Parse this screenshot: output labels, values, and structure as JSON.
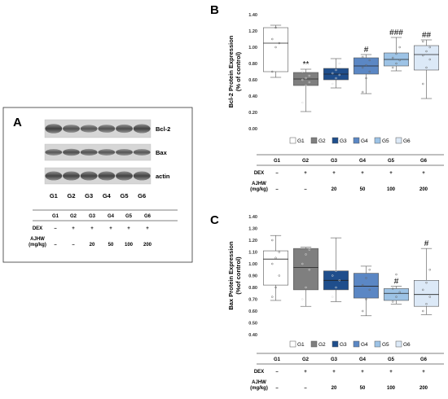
{
  "panels": {
    "A": "A",
    "B": "B",
    "C": "C"
  },
  "blot": {
    "proteins": [
      "Bcl-2",
      "Bax",
      "actin"
    ],
    "lanes": [
      "G1",
      "G2",
      "G3",
      "G4",
      "G5",
      "G6"
    ]
  },
  "table": {
    "groups": [
      "G1",
      "G2",
      "G3",
      "G4",
      "G5",
      "G6"
    ],
    "dex_label": "DEX",
    "dex": [
      "–",
      "+",
      "+",
      "+",
      "+",
      "+"
    ],
    "ajhw_label_line1": "AJHW",
    "ajhw_label_line2": "(mg/kg)",
    "ajhw": [
      "–",
      "–",
      "20",
      "50",
      "100",
      "200"
    ]
  },
  "colors": {
    "G1": "#ffffff",
    "G2": "#7f7f7f",
    "G3": "#1f4e8c",
    "G4": "#5b87c4",
    "G5": "#9dc3e6",
    "G6": "#dce9f7"
  },
  "chart_data": [
    {
      "type": "box",
      "panel": "B",
      "ylabel_line1": "Bcl-2 Protein Expression",
      "ylabel_line2": "(% of control)",
      "ylim": [
        0,
        1.4
      ],
      "yticks": [
        "0.00",
        "0.20",
        "0.40",
        "0.60",
        "0.80",
        "1.00",
        "1.20",
        "1.40"
      ],
      "categories": [
        "G1",
        "G2",
        "G3",
        "G4",
        "G5",
        "G6"
      ],
      "boxes": [
        {
          "name": "G1",
          "min": 0.63,
          "q1": 0.7,
          "median": 1.05,
          "q3": 1.24,
          "max": 1.27,
          "points": [
            0.7,
            1.0,
            1.05,
            1.1,
            1.24
          ]
        },
        {
          "name": "G2",
          "min": 0.21,
          "q1": 0.53,
          "median": 0.61,
          "q3": 0.69,
          "max": 0.73,
          "points": [
            0.32,
            0.53,
            0.57,
            0.6,
            0.62,
            0.65,
            0.7
          ]
        },
        {
          "name": "G3",
          "min": 0.5,
          "q1": 0.6,
          "median": 0.67,
          "q3": 0.74,
          "max": 0.86,
          "points": [
            0.55,
            0.62,
            0.66,
            0.68,
            0.72,
            0.8
          ]
        },
        {
          "name": "G4",
          "min": 0.43,
          "q1": 0.67,
          "median": 0.77,
          "q3": 0.87,
          "max": 0.91,
          "points": [
            0.45,
            0.62,
            0.7,
            0.75,
            0.78,
            0.84,
            0.88
          ]
        },
        {
          "name": "G5",
          "min": 0.71,
          "q1": 0.77,
          "median": 0.85,
          "q3": 0.93,
          "max": 1.12,
          "points": [
            0.75,
            0.8,
            0.84,
            0.87,
            0.92,
            1.0
          ]
        },
        {
          "name": "G6",
          "min": 0.37,
          "q1": 0.72,
          "median": 0.91,
          "q3": 1.02,
          "max": 1.09,
          "points": [
            0.55,
            0.75,
            0.85,
            0.9,
            0.95,
            1.0,
            1.07
          ]
        }
      ],
      "annotations": [
        "",
        "**",
        "",
        "#",
        "###",
        "##"
      ],
      "legend": [
        "G1",
        "G2",
        "G3",
        "G4",
        "G5",
        "G6"
      ]
    },
    {
      "type": "box",
      "panel": "C",
      "ylabel_line1": "Bax Protein Expression",
      "ylabel_line2": "(%of control)",
      "ylim": [
        0.4,
        1.4
      ],
      "yticks": [
        "0.40",
        "0.50",
        "0.60",
        "0.70",
        "0.80",
        "0.90",
        "1.00",
        "1.10",
        "1.20",
        "1.30",
        "1.40"
      ],
      "categories": [
        "G1",
        "G2",
        "G3",
        "G4",
        "G5",
        "G6"
      ],
      "boxes": [
        {
          "name": "G1",
          "min": 0.69,
          "q1": 0.82,
          "median": 1.04,
          "q3": 1.11,
          "max": 1.24,
          "points": [
            0.72,
            0.8,
            0.9,
            1.0,
            1.05,
            1.1,
            1.2
          ]
        },
        {
          "name": "G2",
          "min": 0.64,
          "q1": 0.78,
          "median": 0.97,
          "q3": 1.13,
          "max": 1.14,
          "points": [
            0.7,
            0.8,
            0.95,
            1.0,
            1.08,
            1.12
          ]
        },
        {
          "name": "G3",
          "min": 0.68,
          "q1": 0.78,
          "median": 0.86,
          "q3": 0.94,
          "max": 1.22,
          "points": [
            0.72,
            0.8,
            0.86,
            0.9,
            0.94
          ]
        },
        {
          "name": "G4",
          "min": 0.56,
          "q1": 0.71,
          "median": 0.81,
          "q3": 0.92,
          "max": 0.98,
          "points": [
            0.6,
            0.7,
            0.78,
            0.82,
            0.88,
            0.95
          ]
        },
        {
          "name": "G5",
          "min": 0.66,
          "q1": 0.69,
          "median": 0.75,
          "q3": 0.79,
          "max": 0.81,
          "points": [
            0.68,
            0.72,
            0.76,
            0.79,
            0.91
          ]
        },
        {
          "name": "G6",
          "min": 0.57,
          "q1": 0.64,
          "median": 0.74,
          "q3": 0.86,
          "max": 1.13,
          "points": [
            0.6,
            0.66,
            0.72,
            0.78,
            0.84,
            0.95
          ]
        }
      ],
      "annotations": [
        "",
        "",
        "",
        "",
        "#",
        "#"
      ],
      "legend": [
        "G1",
        "G2",
        "G3",
        "G4",
        "G5",
        "G6"
      ]
    }
  ]
}
